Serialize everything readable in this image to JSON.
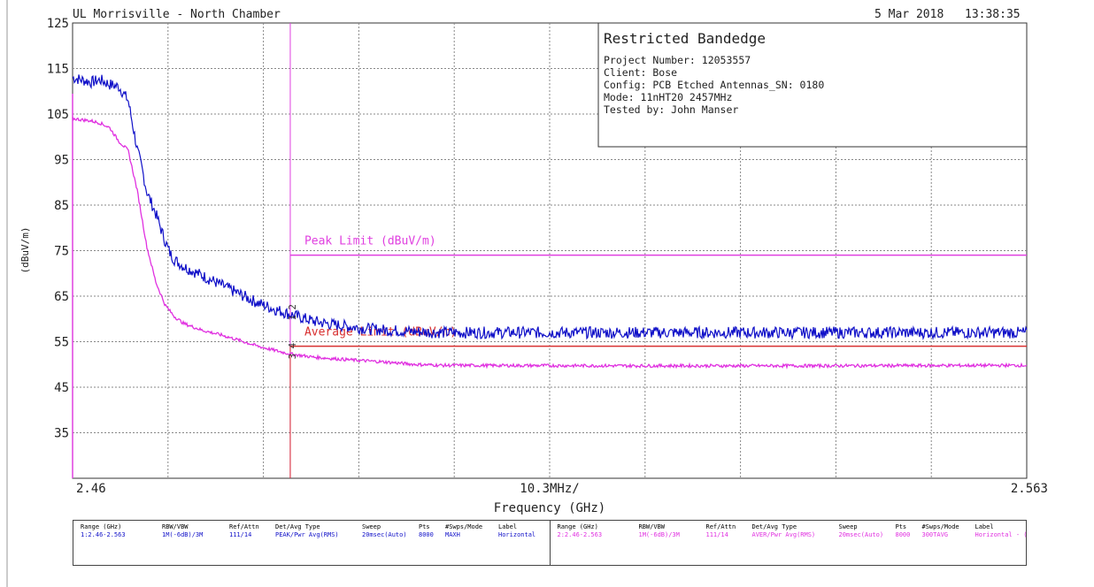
{
  "header": {
    "site": "UL Morrisville - North Chamber",
    "date": "5 Mar 2018",
    "time": "13:38:35"
  },
  "info_box": {
    "title": "Restricted Bandedge",
    "lines": [
      "Project Number: 12053557",
      "Client: Bose",
      "Config: PCB Etched Antennas_SN: 0180",
      "Mode: 11nHT20 2457MHz",
      "Tested by: John Manser"
    ]
  },
  "chart_data": {
    "type": "line",
    "ylabel": "(dBuV/m)",
    "xlabel": "Frequency (GHz)",
    "x_left_label": "2.46",
    "x_right_label": "2.563",
    "x_center_label": "10.3MHz/",
    "xlim": [
      2.46,
      2.563
    ],
    "ylim": [
      25,
      125
    ],
    "yticks": [
      125,
      115,
      105,
      95,
      85,
      75,
      65,
      55,
      45,
      35
    ],
    "grid": true,
    "limits": [
      {
        "name": "Peak Limit (dBuV/m)",
        "value": 74,
        "start": 2.4835,
        "color": "#e040e0"
      },
      {
        "name": "Average Limit (dBuV/m)",
        "value": 54,
        "start": 2.4835,
        "color": "#d83030"
      }
    ],
    "band_edge_marker": {
      "x": 2.4835,
      "color": "#e040e0"
    },
    "markers": [
      {
        "label": "2",
        "x": 2.4835,
        "y": 60.8
      },
      {
        "label": "1",
        "x": 2.4835,
        "y": 60.8
      },
      {
        "label": "4",
        "x": 2.4835,
        "y": 52.3
      },
      {
        "label": "3",
        "x": 2.4835,
        "y": 52.3
      }
    ],
    "series": [
      {
        "name": "Peak",
        "color": "#1010c8",
        "x": [
          2.46,
          2.462,
          2.463,
          2.464,
          2.465,
          2.466,
          2.467,
          2.4675,
          2.468,
          2.469,
          2.47,
          2.4705,
          2.471,
          2.472,
          2.473,
          2.474,
          2.476,
          2.478,
          2.48,
          2.482,
          2.4835,
          2.486,
          2.488,
          2.49,
          2.492,
          2.494,
          2.497,
          2.5,
          2.52,
          2.54,
          2.563
        ],
        "y": [
          113,
          112,
          112.5,
          111.5,
          111,
          108,
          97,
          93,
          88,
          83,
          77,
          74.5,
          73,
          71.5,
          70.5,
          69.5,
          67.5,
          65.5,
          63.5,
          62,
          61,
          59.5,
          58.8,
          58.3,
          57.8,
          57.5,
          57.2,
          57,
          57,
          57,
          57
        ]
      },
      {
        "name": "Average",
        "color": "#e030e0",
        "x": [
          2.46,
          2.462,
          2.463,
          2.464,
          2.465,
          2.466,
          2.467,
          2.468,
          2.469,
          2.47,
          2.471,
          2.472,
          2.474,
          2.476,
          2.478,
          2.48,
          2.482,
          2.4835,
          2.486,
          2.49,
          2.494,
          2.497,
          2.5,
          2.52,
          2.54,
          2.563
        ],
        "y": [
          104,
          103.5,
          103,
          102,
          99,
          97,
          88,
          76,
          68,
          63,
          60.5,
          59,
          57.5,
          56.5,
          55.3,
          54,
          53,
          52.3,
          51.6,
          51,
          50.5,
          50,
          49.8,
          49.7,
          49.7,
          49.8
        ]
      }
    ]
  },
  "settings_table": {
    "left": {
      "headers": [
        "Range (GHz)",
        "RBW/VBW",
        "Ref/Attn",
        "Det/Avg Type",
        "Sweep",
        "Pts",
        "#Swps/Mode",
        "Label"
      ],
      "values": [
        "1:2.46-2.563",
        "1M(-6dB)/3M",
        "111/14",
        "PEAK/Pwr Avg(RMS)",
        "20msec(Auto)",
        "8000",
        "MAXH",
        "Horizontal"
      ],
      "color": "#1010c8"
    },
    "right": {
      "headers": [
        "Range (GHz)",
        "RBW/VBW",
        "Ref/Attn",
        "Det/Avg Type",
        "Sweep",
        "Pts",
        "#Swps/Mode",
        "Label"
      ],
      "values": [
        "2:2.46-2.563",
        "1M(-6dB)/3M",
        "111/14",
        "AVER/Pwr Avg(RMS)",
        "20msec(Auto)",
        "8000",
        "300TAVG",
        "Horizontal - ("
      ],
      "color": "#e030e0"
    }
  },
  "colors": {
    "frame": "#333333",
    "grid": "#888888",
    "text": "#222222"
  }
}
